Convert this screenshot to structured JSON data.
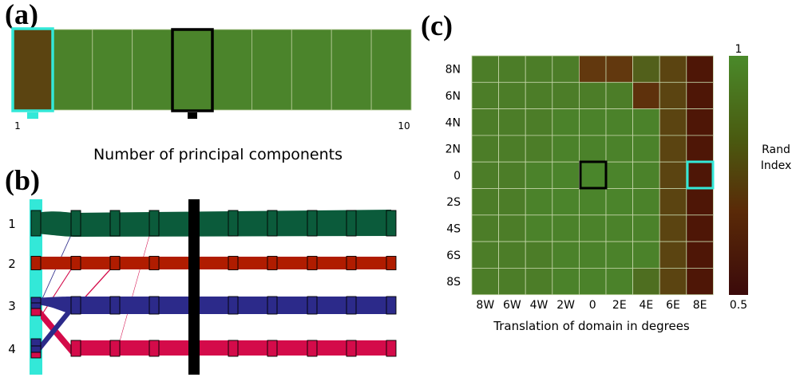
{
  "panels": {
    "a": "(a)",
    "b": "(b)",
    "c": "(c)"
  },
  "chart_data": [
    {
      "panel": "a",
      "type": "heatmap",
      "xlabel": "Number of principal components",
      "tick_labels": [
        "1",
        "10"
      ],
      "cells": [
        0.78,
        0.95,
        0.96,
        0.96,
        0.96,
        0.96,
        0.96,
        0.96,
        0.96,
        0.96
      ],
      "highlight_cyan": 1,
      "highlight_black": 5
    },
    {
      "panel": "b",
      "type": "sankey",
      "rows": [
        "1",
        "2",
        "3",
        "4"
      ],
      "columns": [
        1,
        2,
        3,
        4,
        5,
        6,
        7,
        8,
        9,
        10
      ],
      "colors": {
        "1": "#0b5b3b",
        "2": "#b01c00",
        "3": "#2c2a8a",
        "4": "#d40b4a"
      },
      "highlight_cyan": 1,
      "highlight_black": 5
    },
    {
      "panel": "c",
      "type": "heatmap",
      "xlabel": "Translation of domain in degrees",
      "x_ticks": [
        "8W",
        "6W",
        "4W",
        "2W",
        "0",
        "2E",
        "4E",
        "6E",
        "8E"
      ],
      "y_ticks": [
        "8N",
        "6N",
        "4N",
        "2N",
        "0",
        "2S",
        "4S",
        "6S",
        "8S"
      ],
      "colorbar": {
        "label_line1": "Rand",
        "label_line2": "Index",
        "max_label": "1",
        "min_label": "0.5",
        "min": 0.5,
        "max": 1
      },
      "values": [
        [
          0.93,
          0.93,
          0.93,
          0.93,
          0.72,
          0.72,
          0.85,
          0.78,
          0.62
        ],
        [
          0.93,
          0.93,
          0.93,
          0.93,
          0.93,
          0.93,
          0.7,
          0.78,
          0.62
        ],
        [
          0.93,
          0.93,
          0.93,
          0.95,
          0.95,
          0.95,
          0.95,
          0.78,
          0.62
        ],
        [
          0.93,
          0.93,
          0.93,
          0.95,
          0.95,
          0.95,
          0.95,
          0.78,
          0.62
        ],
        [
          0.93,
          0.93,
          0.95,
          0.96,
          0.97,
          0.96,
          0.95,
          0.78,
          0.62
        ],
        [
          0.93,
          0.93,
          0.95,
          0.96,
          0.96,
          0.96,
          0.95,
          0.78,
          0.62
        ],
        [
          0.93,
          0.93,
          0.95,
          0.95,
          0.95,
          0.95,
          0.95,
          0.78,
          0.62
        ],
        [
          0.93,
          0.93,
          0.93,
          0.95,
          0.95,
          0.95,
          0.95,
          0.78,
          0.62
        ],
        [
          0.93,
          0.93,
          0.93,
          0.95,
          0.95,
          0.95,
          0.88,
          0.78,
          0.62
        ]
      ],
      "highlight_black": [
        4,
        4
      ],
      "highlight_cyan": [
        4,
        8
      ]
    }
  ]
}
